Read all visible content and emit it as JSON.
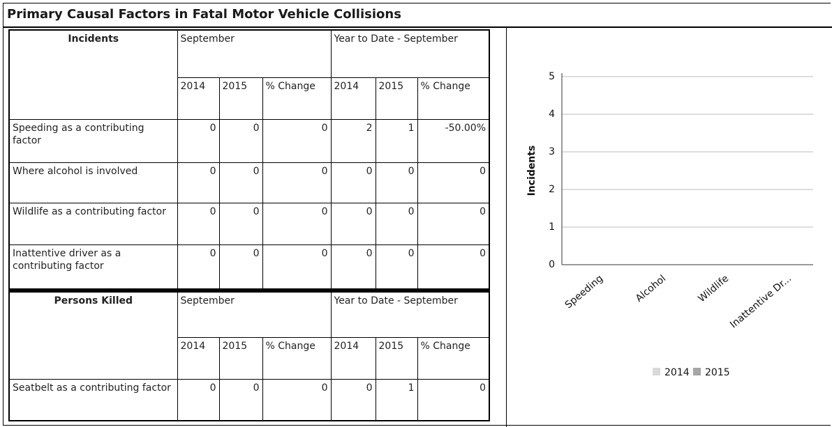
{
  "title": "Primary Causal Factors in Fatal Motor Vehicle Collisions",
  "tables": [
    {
      "header": {
        "label": "Incidents",
        "group1": "September",
        "group2": "Year to Date - September",
        "columns": [
          "2014",
          "2015",
          "% Change",
          "2014",
          "2015",
          "% Change"
        ]
      },
      "rows": [
        {
          "label": "Speeding as a contributing factor",
          "values": [
            0,
            0,
            0,
            2,
            1,
            "-50.00%"
          ]
        },
        {
          "label": "Where alcohol is involved",
          "values": [
            0,
            0,
            0,
            0,
            0,
            0
          ]
        },
        {
          "label": "Wildlife as a contributing factor",
          "values": [
            0,
            0,
            0,
            0,
            0,
            0
          ]
        },
        {
          "label": "Inattentive driver as a contributing factor",
          "values": [
            0,
            0,
            0,
            0,
            0,
            0
          ]
        }
      ]
    },
    {
      "header": {
        "label": "Persons Killed",
        "group1": "September",
        "group2": "Year to Date - September",
        "columns": [
          "2014",
          "2015",
          "% Change",
          "2014",
          "2015",
          "% Change"
        ]
      },
      "rows": [
        {
          "label": "Seatbelt as a contributing factor",
          "values": [
            0,
            0,
            0,
            0,
            1,
            0
          ]
        }
      ]
    }
  ],
  "chart_data": {
    "type": "bar",
    "ylabel": "Incidents",
    "categories": [
      "Speeding",
      "Alcohol",
      "Wildlife",
      "Inattentive Dr..."
    ],
    "series": [
      {
        "name": "2014",
        "color": "#d9d9d9",
        "values": [
          0,
          0,
          0,
          0
        ]
      },
      {
        "name": "2015",
        "color": "#a6a6a6",
        "values": [
          0,
          0,
          0,
          0
        ]
      }
    ],
    "ylim": [
      0,
      5
    ],
    "yticks": [
      0,
      1,
      2,
      3,
      4,
      5
    ],
    "grid": true,
    "legend": "bottom"
  }
}
